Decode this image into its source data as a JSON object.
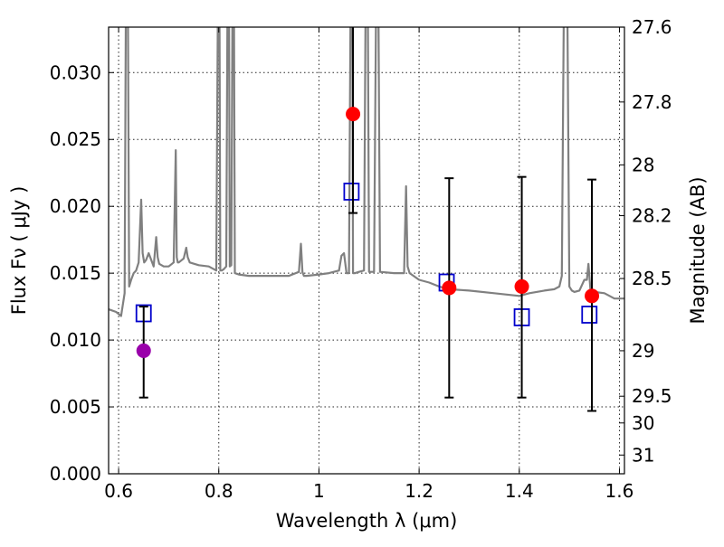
{
  "chart_data": {
    "type": "scatter",
    "title": "",
    "xlabel": "Wavelength  λ (μm)",
    "ylabel": "Flux  Fν  ( μJy )",
    "y2label": "Magnitude (AB)",
    "xlim": [
      0.58,
      1.61
    ],
    "ylim": [
      0.0,
      0.0334
    ],
    "grid": true,
    "x_ticks": [
      0.6,
      0.8,
      1.0,
      1.2,
      1.4,
      1.6
    ],
    "x_tick_labels": [
      "0.6",
      "0.8",
      "1",
      "1.2",
      "1.4",
      "1.6"
    ],
    "y_ticks": [
      0.0,
      0.005,
      0.01,
      0.015,
      0.02,
      0.025,
      0.03
    ],
    "y_tick_labels": [
      "0.000",
      "0.005",
      "0.010",
      "0.015",
      "0.020",
      "0.025",
      "0.030"
    ],
    "y2_ticks": [
      {
        "label": "27.6",
        "flux": 0.0334
      },
      {
        "label": "27.8",
        "flux": 0.0278
      },
      {
        "label": "28",
        "flux": 0.0231
      },
      {
        "label": "28.2",
        "flux": 0.0193
      },
      {
        "label": "28.5",
        "flux": 0.0146
      },
      {
        "label": "29",
        "flux": 0.0092
      },
      {
        "label": "29.5",
        "flux": 0.0058
      },
      {
        "label": "30",
        "flux": 0.0038
      },
      {
        "label": "31",
        "flux": 0.0014
      }
    ],
    "series": [
      {
        "name": "model spectrum",
        "kind": "line",
        "color": "#808080",
        "x": [
          0.58,
          0.595,
          0.605,
          0.612,
          0.615,
          0.618,
          0.621,
          0.625,
          0.63,
          0.635,
          0.64,
          0.645,
          0.648,
          0.651,
          0.655,
          0.66,
          0.67,
          0.675,
          0.678,
          0.681,
          0.69,
          0.7,
          0.71,
          0.714,
          0.716,
          0.718,
          0.72,
          0.73,
          0.735,
          0.738,
          0.742,
          0.76,
          0.78,
          0.795,
          0.799,
          0.801,
          0.803,
          0.806,
          0.81,
          0.815,
          0.818,
          0.82,
          0.822,
          0.825,
          0.828,
          0.83,
          0.832,
          0.84,
          0.86,
          0.9,
          0.94,
          0.96,
          0.964,
          0.967,
          0.97,
          0.975,
          1.0,
          1.02,
          1.04,
          1.045,
          1.05,
          1.055,
          1.06,
          1.064,
          1.066,
          1.068,
          1.072,
          1.08,
          1.09,
          1.094,
          1.097,
          1.1,
          1.11,
          1.115,
          1.118,
          1.122,
          1.15,
          1.17,
          1.174,
          1.177,
          1.181,
          1.185,
          1.2,
          1.22,
          1.24,
          1.26,
          1.3,
          1.35,
          1.4,
          1.42,
          1.45,
          1.47,
          1.48,
          1.485,
          1.49,
          1.495,
          1.5,
          1.505,
          1.51,
          1.52,
          1.53,
          1.535,
          1.538,
          1.542,
          1.55,
          1.57,
          1.59,
          1.61
        ],
        "y": [
          0.0123,
          0.0121,
          0.0118,
          0.0135,
          0.04,
          0.04,
          0.014,
          0.0145,
          0.015,
          0.0152,
          0.0158,
          0.0205,
          0.0165,
          0.0158,
          0.016,
          0.0165,
          0.0155,
          0.0177,
          0.0162,
          0.0157,
          0.0155,
          0.0155,
          0.0158,
          0.0242,
          0.0162,
          0.0158,
          0.0158,
          0.0161,
          0.0169,
          0.0162,
          0.0158,
          0.0156,
          0.0155,
          0.0152,
          0.04,
          0.04,
          0.0152,
          0.0152,
          0.0153,
          0.0155,
          0.04,
          0.04,
          0.0155,
          0.0156,
          0.04,
          0.04,
          0.015,
          0.0149,
          0.0148,
          0.0148,
          0.0148,
          0.0151,
          0.0172,
          0.0151,
          0.0148,
          0.0148,
          0.0149,
          0.015,
          0.0152,
          0.0163,
          0.0165,
          0.015,
          0.015,
          0.04,
          0.04,
          0.015,
          0.015,
          0.0151,
          0.0152,
          0.04,
          0.04,
          0.0151,
          0.0151,
          0.04,
          0.04,
          0.0151,
          0.015,
          0.015,
          0.0215,
          0.0155,
          0.015,
          0.0149,
          0.0145,
          0.0143,
          0.014,
          0.0138,
          0.0137,
          0.0135,
          0.0133,
          0.0135,
          0.0137,
          0.0138,
          0.014,
          0.0148,
          0.04,
          0.04,
          0.014,
          0.0137,
          0.0136,
          0.0137,
          0.0145,
          0.0145,
          0.0157,
          0.0138,
          0.0136,
          0.0135,
          0.0131,
          0.0131
        ]
      },
      {
        "name": "model photometry",
        "kind": "open-square",
        "color": "#0000cc",
        "x": [
          0.65,
          1.065,
          1.255,
          1.405,
          1.54
        ],
        "y": [
          0.012,
          0.0211,
          0.0143,
          0.0117,
          0.0119
        ]
      },
      {
        "name": "observed photometry",
        "kind": "filled-circle",
        "color": "#ff0000",
        "x": [
          0.65,
          1.068,
          1.26,
          1.405,
          1.545
        ],
        "y": [
          0.0092,
          0.0269,
          0.0139,
          0.014,
          0.0133
        ],
        "colors": [
          "#9900aa",
          "#ff0000",
          "#ff0000",
          "#ff0000",
          "#ff0000"
        ],
        "err_low": [
          0.0057,
          0.0195,
          0.0057,
          0.0057,
          0.0047
        ],
        "err_high": [
          0.0125,
          0.04,
          0.0221,
          0.0222,
          0.022
        ]
      }
    ]
  }
}
